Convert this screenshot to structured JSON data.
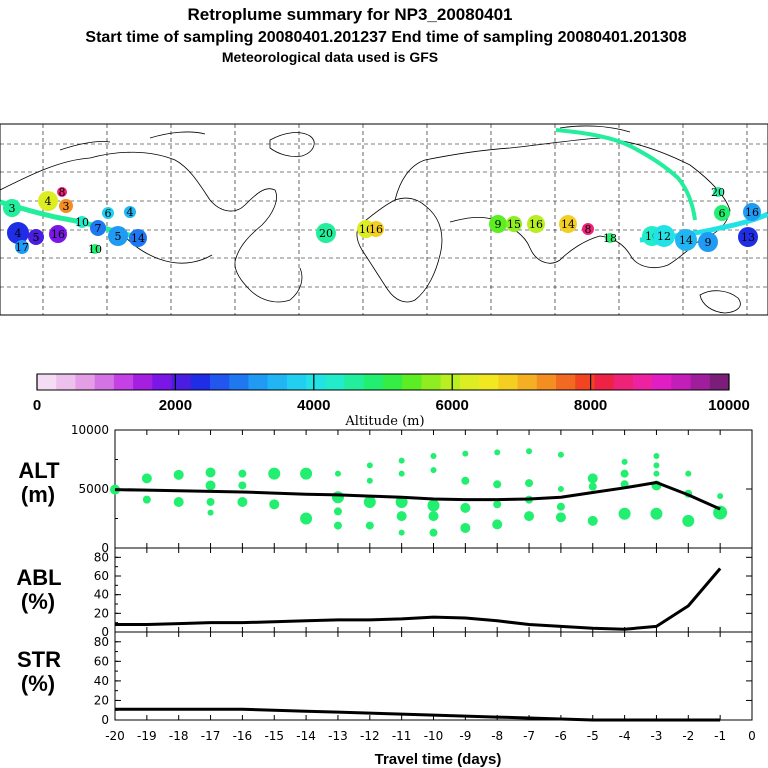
{
  "header": {
    "line1": "Retroplume summary for NP3_20080401",
    "line2": "Start time of sampling 20080401.201237     End time of sampling 20080401.201308",
    "line3": "Meteorological data used is GFS"
  },
  "colorbar": {
    "label": "Altitude (m)",
    "tick_labels": [
      "0",
      "2000",
      "4000",
      "6000",
      "8000",
      "10000"
    ],
    "colors": [
      "#f4ddf4",
      "#eec0ee",
      "#e39ee6",
      "#d473e3",
      "#c441e6",
      "#a51fe0",
      "#7a16e6",
      "#4a1ee0",
      "#1f2ee6",
      "#2157ee",
      "#1f78f2",
      "#1f9bf4",
      "#21b5f4",
      "#21cff0",
      "#22e2e6",
      "#22ecc9",
      "#22ee9c",
      "#22ee70",
      "#34ee45",
      "#5cee22",
      "#8fee22",
      "#b9ee22",
      "#dcee22",
      "#f2e822",
      "#f4cf22",
      "#f4b022",
      "#f48d22",
      "#f26a22",
      "#f24422",
      "#ee2244",
      "#ee2277",
      "#ee22a0",
      "#e01ec2",
      "#c41eb8",
      "#a01e9c",
      "#7a1e7a"
    ]
  },
  "map": {
    "labels": [
      {
        "t": "3",
        "c": "#22ee9c"
      },
      {
        "t": "4",
        "c": "#dcee22"
      },
      {
        "t": "3",
        "c": "#f48d22"
      },
      {
        "t": "8",
        "c": "#ee2277"
      },
      {
        "t": "10",
        "c": "#22ecc9"
      },
      {
        "t": "7",
        "c": "#1f78f2"
      },
      {
        "t": "5",
        "c": "#1f9bf4"
      },
      {
        "t": "4",
        "c": "#21b5f4"
      },
      {
        "t": "4",
        "c": "#1f2ee6"
      },
      {
        "t": "5",
        "c": "#4a1ee0"
      },
      {
        "t": "16",
        "c": "#7a16e6"
      },
      {
        "t": "17",
        "c": "#1f9bf4"
      },
      {
        "t": "6",
        "c": "#21cff0"
      },
      {
        "t": "10",
        "c": "#22ee70"
      },
      {
        "t": "14",
        "c": "#1f78f2"
      },
      {
        "t": "20",
        "c": "#22ee9c"
      },
      {
        "t": "16",
        "c": "#dcee22"
      },
      {
        "t": "16",
        "c": "#f4cf22"
      },
      {
        "t": "9",
        "c": "#5cee22"
      },
      {
        "t": "15",
        "c": "#8fee22"
      },
      {
        "t": "16",
        "c": "#b9ee22"
      },
      {
        "t": "14",
        "c": "#f4cf22"
      },
      {
        "t": "8",
        "c": "#ee2277"
      },
      {
        "t": "10",
        "c": "#22ecc9"
      },
      {
        "t": "12",
        "c": "#22e2e6"
      },
      {
        "t": "14",
        "c": "#21b5f4"
      },
      {
        "t": "9",
        "c": "#1f9bf4"
      },
      {
        "t": "6",
        "c": "#22ee70"
      },
      {
        "t": "13",
        "c": "#1f2ee6"
      },
      {
        "t": "16",
        "c": "#1f9bf4"
      },
      {
        "t": "20",
        "c": "#22ee9c"
      },
      {
        "t": "18",
        "c": "#22ee70"
      }
    ]
  },
  "chart_data": [
    {
      "type": "line",
      "title": "ALT (m)",
      "label_main": "ALT",
      "label_unit": "(m)",
      "ylim": [
        0,
        10000
      ],
      "yticks": [
        "10000",
        "5000",
        "0"
      ],
      "x": [
        -20,
        -19,
        -18,
        -17,
        -16,
        -15,
        -14,
        -13,
        -12,
        -11,
        -10,
        -9,
        -8,
        -7,
        -6,
        -5,
        -4,
        -3,
        -2,
        -1
      ],
      "y": [
        4950,
        4900,
        4850,
        4800,
        4750,
        4650,
        4550,
        4500,
        4400,
        4300,
        4150,
        4100,
        4100,
        4150,
        4300,
        4700,
        5100,
        5550,
        4500,
        3300
      ],
      "scatter": [
        {
          "x": -20,
          "y": 4950,
          "s": 5
        },
        {
          "x": -19,
          "y": 5900,
          "s": 5
        },
        {
          "x": -19,
          "y": 4100,
          "s": 4
        },
        {
          "x": -18,
          "y": 6200,
          "s": 5
        },
        {
          "x": -18,
          "y": 3900,
          "s": 5
        },
        {
          "x": -17,
          "y": 6400,
          "s": 5
        },
        {
          "x": -17,
          "y": 5300,
          "s": 5
        },
        {
          "x": -17,
          "y": 3900,
          "s": 4
        },
        {
          "x": -17,
          "y": 3000,
          "s": 3
        },
        {
          "x": -16,
          "y": 6300,
          "s": 4
        },
        {
          "x": -16,
          "y": 5300,
          "s": 4
        },
        {
          "x": -16,
          "y": 3900,
          "s": 5
        },
        {
          "x": -15,
          "y": 6300,
          "s": 6
        },
        {
          "x": -15,
          "y": 3700,
          "s": 5
        },
        {
          "x": -14,
          "y": 6300,
          "s": 6
        },
        {
          "x": -14,
          "y": 2500,
          "s": 6
        },
        {
          "x": -13,
          "y": 6300,
          "s": 3
        },
        {
          "x": -13,
          "y": 4300,
          "s": 6
        },
        {
          "x": -13,
          "y": 3100,
          "s": 4
        },
        {
          "x": -13,
          "y": 1900,
          "s": 4
        },
        {
          "x": -12,
          "y": 7000,
          "s": 3
        },
        {
          "x": -12,
          "y": 5700,
          "s": 3
        },
        {
          "x": -12,
          "y": 3900,
          "s": 6
        },
        {
          "x": -12,
          "y": 1900,
          "s": 4
        },
        {
          "x": -11,
          "y": 7400,
          "s": 3
        },
        {
          "x": -11,
          "y": 6300,
          "s": 3
        },
        {
          "x": -11,
          "y": 3900,
          "s": 6
        },
        {
          "x": -11,
          "y": 2700,
          "s": 5
        },
        {
          "x": -11,
          "y": 1300,
          "s": 3
        },
        {
          "x": -10,
          "y": 7800,
          "s": 3
        },
        {
          "x": -10,
          "y": 6600,
          "s": 3
        },
        {
          "x": -10,
          "y": 3600,
          "s": 6
        },
        {
          "x": -10,
          "y": 2700,
          "s": 5
        },
        {
          "x": -10,
          "y": 1300,
          "s": 4
        },
        {
          "x": -9,
          "y": 8000,
          "s": 3
        },
        {
          "x": -9,
          "y": 5700,
          "s": 4
        },
        {
          "x": -9,
          "y": 3400,
          "s": 5
        },
        {
          "x": -9,
          "y": 1700,
          "s": 5
        },
        {
          "x": -8,
          "y": 8100,
          "s": 3
        },
        {
          "x": -8,
          "y": 5400,
          "s": 4
        },
        {
          "x": -8,
          "y": 3700,
          "s": 4
        },
        {
          "x": -8,
          "y": 2000,
          "s": 5
        },
        {
          "x": -7,
          "y": 8200,
          "s": 3
        },
        {
          "x": -7,
          "y": 5500,
          "s": 4
        },
        {
          "x": -7,
          "y": 4100,
          "s": 4
        },
        {
          "x": -7,
          "y": 2700,
          "s": 5
        },
        {
          "x": -6,
          "y": 7900,
          "s": 3
        },
        {
          "x": -6,
          "y": 5000,
          "s": 3
        },
        {
          "x": -6,
          "y": 3500,
          "s": 4
        },
        {
          "x": -6,
          "y": 2600,
          "s": 5
        },
        {
          "x": -5,
          "y": 5900,
          "s": 5
        },
        {
          "x": -5,
          "y": 5200,
          "s": 4
        },
        {
          "x": -5,
          "y": 2300,
          "s": 5
        },
        {
          "x": -4,
          "y": 7300,
          "s": 3
        },
        {
          "x": -4,
          "y": 6300,
          "s": 4
        },
        {
          "x": -4,
          "y": 5400,
          "s": 4
        },
        {
          "x": -4,
          "y": 2900,
          "s": 6
        },
        {
          "x": -3,
          "y": 7800,
          "s": 3
        },
        {
          "x": -3,
          "y": 7000,
          "s": 3
        },
        {
          "x": -3,
          "y": 6300,
          "s": 3
        },
        {
          "x": -3,
          "y": 5300,
          "s": 5
        },
        {
          "x": -3,
          "y": 2900,
          "s": 6
        },
        {
          "x": -2,
          "y": 6300,
          "s": 3
        },
        {
          "x": -2,
          "y": 4600,
          "s": 4
        },
        {
          "x": -2,
          "y": 2300,
          "s": 6
        },
        {
          "x": -1,
          "y": 4400,
          "s": 3
        },
        {
          "x": -1,
          "y": 3000,
          "s": 7
        }
      ]
    },
    {
      "type": "line",
      "title": "ABL (%)",
      "label_main": "ABL",
      "label_unit": "(%)",
      "ylim": [
        0,
        90
      ],
      "yticks": [
        "80",
        "60",
        "40",
        "20",
        "0"
      ],
      "x": [
        -20,
        -19,
        -18,
        -17,
        -16,
        -15,
        -14,
        -13,
        -12,
        -11,
        -10,
        -9,
        -8,
        -7,
        -6,
        -5,
        -4,
        -3,
        -2,
        -1
      ],
      "y": [
        8,
        8,
        9,
        10,
        10,
        11,
        12,
        13,
        13,
        14,
        16,
        15,
        12,
        8,
        6,
        4,
        3,
        6,
        28,
        68
      ]
    },
    {
      "type": "line",
      "title": "STR (%)",
      "label_main": "STR",
      "label_unit": "(%)",
      "ylim": [
        0,
        90
      ],
      "yticks": [
        "80",
        "60",
        "40",
        "20",
        "0"
      ],
      "x": [
        -20,
        -19,
        -18,
        -17,
        -16,
        -15,
        -14,
        -13,
        -12,
        -11,
        -10,
        -9,
        -8,
        -7,
        -6,
        -5,
        -4,
        -3,
        -2,
        -1
      ],
      "y": [
        11,
        11,
        11,
        11,
        11,
        10,
        9,
        8,
        7,
        6,
        5,
        4,
        3,
        2,
        1,
        0,
        0,
        0,
        0,
        0
      ],
      "xlabel": "Travel time (days)",
      "xtick_labels": [
        "-20",
        "-19",
        "-18",
        "-17",
        "-16",
        "-15",
        "-14",
        "-13",
        "-12",
        "-11",
        "-10",
        "-9",
        "-8",
        "-7",
        "-6",
        "-5",
        "-4",
        "-3",
        "-2",
        "-1",
        "0"
      ]
    }
  ]
}
